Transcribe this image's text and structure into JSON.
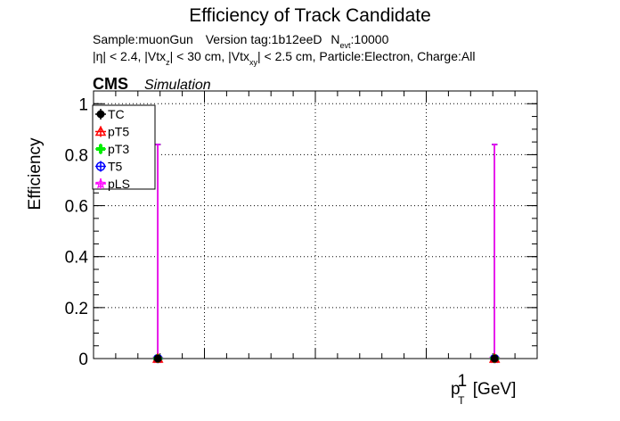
{
  "chart_data": {
    "type": "scatter",
    "title": "Efficiency of Track Candidate",
    "subtitle_line1": {
      "sample": "Sample:muonGun",
      "version": "Version tag:1b12eeD",
      "nevt_base": "N",
      "nevt_sub": "evt",
      "nevt_value": ":10000"
    },
    "subtitle_line2": {
      "eta": "|η| < 2.4, |Vtx",
      "vtxz_sub": "z",
      "vtxz_cut": "| < 30 cm, |Vtx",
      "vtxxy_sub": "xy",
      "vtxxy_cut": "| < 2.5 cm, Particle:Electron, Charge:All"
    },
    "cms_label": "CMS",
    "simulation_label": "Simulation",
    "ylabel": "Efficiency",
    "xlabel": {
      "base": "p",
      "sub": "T",
      "sup": "1",
      "unit": " [GeV]"
    },
    "ylim": [
      0,
      1.05
    ],
    "xlim": [
      0,
      1
    ],
    "yticks": [
      {
        "value": 0,
        "label": "0"
      },
      {
        "value": 0.2,
        "label": "0.2"
      },
      {
        "value": 0.4,
        "label": "0.4"
      },
      {
        "value": 0.6,
        "label": "0.6"
      },
      {
        "value": 0.8,
        "label": "0.8"
      },
      {
        "value": 1.0,
        "label": "1"
      }
    ],
    "xticks_major": [
      0,
      0.25,
      0.5,
      0.75,
      1.0
    ],
    "grid": true,
    "legend_position": "top-left",
    "series": [
      {
        "name": "TC",
        "color": "#000000",
        "marker": "circle-filled"
      },
      {
        "name": "pT5",
        "color": "#ff0000",
        "marker": "triangle-open"
      },
      {
        "name": "pT3",
        "color": "#00ee00",
        "marker": "cross-filled"
      },
      {
        "name": "T5",
        "color": "#0000ff",
        "marker": "circle-open"
      },
      {
        "name": "pLS",
        "color": "#ff00ff",
        "marker": "star"
      }
    ],
    "points": [
      {
        "x": 0.145,
        "y": 0.0,
        "yerr_up": 0.84,
        "xerr": 0.02
      },
      {
        "x": 0.904,
        "y": 0.0,
        "yerr_up": 0.84,
        "xerr": 0.0
      }
    ]
  }
}
